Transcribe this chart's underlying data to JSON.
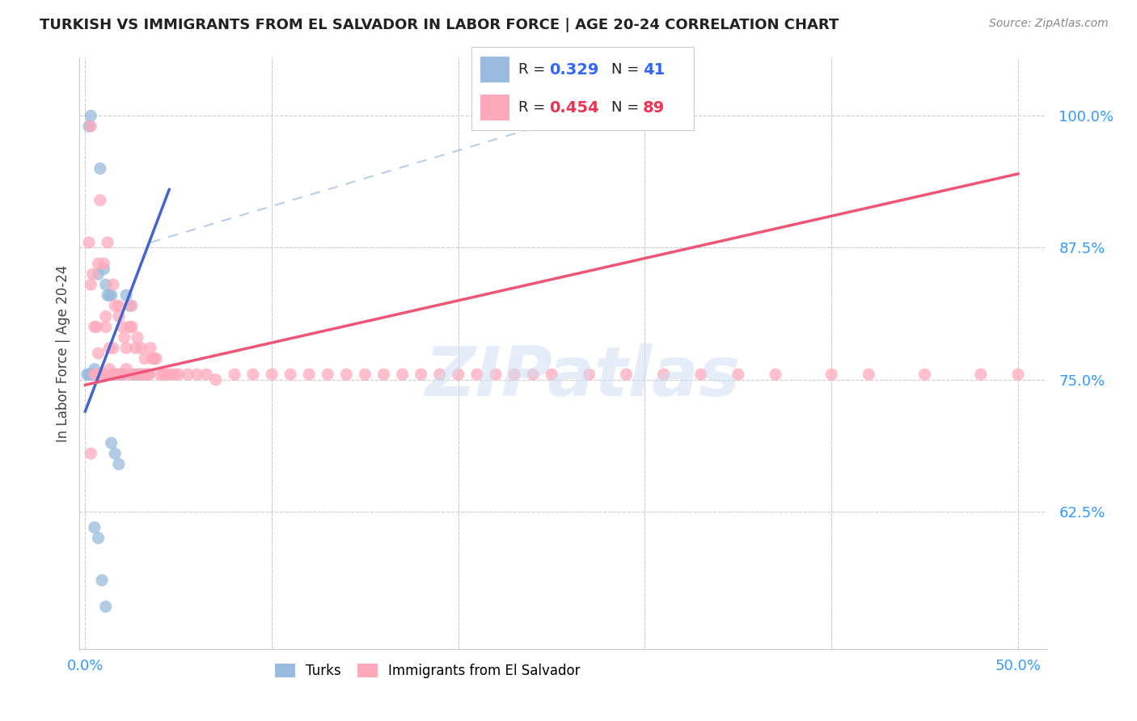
{
  "title": "TURKISH VS IMMIGRANTS FROM EL SALVADOR IN LABOR FORCE | AGE 20-24 CORRELATION CHART",
  "source": "Source: ZipAtlas.com",
  "ylabel": "In Labor Force | Age 20-24",
  "xlim_min": -0.003,
  "xlim_max": 0.515,
  "ylim_min": 0.495,
  "ylim_max": 1.055,
  "blue_color": "#99BBDD",
  "pink_color": "#FFAABB",
  "blue_line_color": "#4466CC",
  "pink_line_color": "#EE5577",
  "dash_line_color": "#99BBDD",
  "blue_R": "0.329",
  "blue_N": "41",
  "pink_R": "0.454",
  "pink_N": "89",
  "watermark_text": "ZIPatlas",
  "legend_label_turks": "Turks",
  "legend_label_salvador": "Immigrants from El Salvador",
  "turks_x": [
    0.001,
    0.002,
    0.002,
    0.003,
    0.003,
    0.003,
    0.004,
    0.004,
    0.005,
    0.005,
    0.006,
    0.006,
    0.007,
    0.007,
    0.008,
    0.008,
    0.009,
    0.01,
    0.01,
    0.011,
    0.012,
    0.013,
    0.014,
    0.015,
    0.016,
    0.018,
    0.02,
    0.022,
    0.024,
    0.026,
    0.028,
    0.03,
    0.032,
    0.034,
    0.014,
    0.016,
    0.018,
    0.005,
    0.007,
    0.009,
    0.011
  ],
  "turks_y": [
    0.755,
    0.755,
    0.99,
    0.755,
    0.755,
    1.0,
    0.755,
    0.755,
    0.755,
    0.76,
    0.755,
    0.755,
    0.755,
    0.85,
    0.755,
    0.95,
    0.755,
    0.755,
    0.855,
    0.84,
    0.83,
    0.83,
    0.83,
    0.755,
    0.755,
    0.755,
    0.755,
    0.83,
    0.82,
    0.755,
    0.755,
    0.755,
    0.755,
    0.755,
    0.69,
    0.68,
    0.67,
    0.61,
    0.6,
    0.56,
    0.535
  ],
  "salvador_x": [
    0.002,
    0.003,
    0.004,
    0.005,
    0.006,
    0.007,
    0.008,
    0.009,
    0.01,
    0.011,
    0.012,
    0.013,
    0.014,
    0.015,
    0.016,
    0.017,
    0.018,
    0.019,
    0.02,
    0.021,
    0.022,
    0.023,
    0.024,
    0.025,
    0.026,
    0.027,
    0.028,
    0.029,
    0.03,
    0.031,
    0.032,
    0.033,
    0.034,
    0.035,
    0.036,
    0.037,
    0.038,
    0.04,
    0.042,
    0.044,
    0.046,
    0.048,
    0.05,
    0.055,
    0.06,
    0.065,
    0.07,
    0.08,
    0.09,
    0.1,
    0.11,
    0.12,
    0.13,
    0.14,
    0.15,
    0.16,
    0.17,
    0.18,
    0.19,
    0.2,
    0.21,
    0.22,
    0.23,
    0.24,
    0.25,
    0.27,
    0.29,
    0.31,
    0.33,
    0.35,
    0.37,
    0.4,
    0.42,
    0.45,
    0.48,
    0.5,
    0.003,
    0.005,
    0.007,
    0.009,
    0.011,
    0.013,
    0.015,
    0.018,
    0.022,
    0.025,
    0.003,
    0.006,
    0.01
  ],
  "salvador_y": [
    0.88,
    0.99,
    0.85,
    0.755,
    0.8,
    0.86,
    0.92,
    0.755,
    0.86,
    0.8,
    0.88,
    0.78,
    0.755,
    0.84,
    0.82,
    0.755,
    0.82,
    0.755,
    0.8,
    0.79,
    0.78,
    0.755,
    0.8,
    0.8,
    0.755,
    0.78,
    0.79,
    0.755,
    0.78,
    0.755,
    0.77,
    0.755,
    0.755,
    0.78,
    0.77,
    0.77,
    0.77,
    0.755,
    0.755,
    0.755,
    0.755,
    0.755,
    0.755,
    0.755,
    0.755,
    0.755,
    0.75,
    0.755,
    0.755,
    0.755,
    0.755,
    0.755,
    0.755,
    0.755,
    0.755,
    0.755,
    0.755,
    0.755,
    0.755,
    0.755,
    0.755,
    0.755,
    0.755,
    0.755,
    0.755,
    0.755,
    0.755,
    0.755,
    0.755,
    0.755,
    0.755,
    0.755,
    0.755,
    0.755,
    0.755,
    0.755,
    0.84,
    0.8,
    0.775,
    0.755,
    0.81,
    0.76,
    0.78,
    0.81,
    0.76,
    0.82,
    0.68,
    0.755,
    0.755
  ]
}
